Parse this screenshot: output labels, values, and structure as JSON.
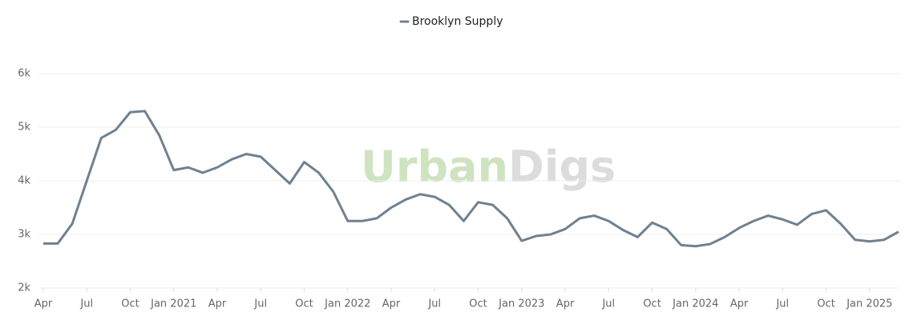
{
  "chart_data": {
    "type": "line",
    "watermark": {
      "first": "Urban",
      "second": "Digs"
    },
    "x": [
      "2020-04",
      "2020-05",
      "2020-06",
      "2020-07",
      "2020-08",
      "2020-09",
      "2020-10",
      "2020-11",
      "2020-12",
      "2021-01",
      "2021-02",
      "2021-03",
      "2021-04",
      "2021-05",
      "2021-06",
      "2021-07",
      "2021-08",
      "2021-09",
      "2021-10",
      "2021-11",
      "2021-12",
      "2022-01",
      "2022-02",
      "2022-03",
      "2022-04",
      "2022-05",
      "2022-06",
      "2022-07",
      "2022-08",
      "2022-09",
      "2022-10",
      "2022-11",
      "2022-12",
      "2023-01",
      "2023-02",
      "2023-03",
      "2023-04",
      "2023-05",
      "2023-06",
      "2023-07",
      "2023-08",
      "2023-09",
      "2023-10",
      "2023-11",
      "2023-12",
      "2024-01",
      "2024-02",
      "2024-03",
      "2024-04",
      "2024-05",
      "2024-06",
      "2024-07",
      "2024-08",
      "2024-09",
      "2024-10",
      "2024-11",
      "2024-12",
      "2025-01",
      "2025-02",
      "2025-03"
    ],
    "series": [
      {
        "name": "Brooklyn Supply",
        "color": "#6f8190",
        "values": [
          2830,
          2830,
          3200,
          4000,
          4800,
          4950,
          5280,
          5300,
          4850,
          4200,
          4250,
          4150,
          4250,
          4400,
          4500,
          4450,
          4200,
          3950,
          4350,
          4150,
          3800,
          3250,
          3250,
          3300,
          3500,
          3650,
          3750,
          3700,
          3550,
          3250,
          3600,
          3550,
          3300,
          2880,
          2970,
          3000,
          3100,
          3300,
          3350,
          3250,
          3080,
          2950,
          3220,
          3100,
          2800,
          2780,
          2820,
          2950,
          3120,
          3250,
          3350,
          3280,
          3180,
          3380,
          3450,
          3200,
          2900,
          2870,
          2900,
          3050
        ]
      }
    ],
    "xlim": [
      "2020-04",
      "2025-03"
    ],
    "xticks": [
      {
        "value": "2020-04",
        "label": "Apr"
      },
      {
        "value": "2020-07",
        "label": "Jul"
      },
      {
        "value": "2020-10",
        "label": "Oct"
      },
      {
        "value": "2021-01",
        "label": "Jan 2021"
      },
      {
        "value": "2021-04",
        "label": "Apr"
      },
      {
        "value": "2021-07",
        "label": "Jul"
      },
      {
        "value": "2021-10",
        "label": "Oct"
      },
      {
        "value": "2022-01",
        "label": "Jan 2022"
      },
      {
        "value": "2022-04",
        "label": "Apr"
      },
      {
        "value": "2022-07",
        "label": "Jul"
      },
      {
        "value": "2022-10",
        "label": "Oct"
      },
      {
        "value": "2023-01",
        "label": "Jan 2023"
      },
      {
        "value": "2023-04",
        "label": "Apr"
      },
      {
        "value": "2023-07",
        "label": "Jul"
      },
      {
        "value": "2023-10",
        "label": "Oct"
      },
      {
        "value": "2024-01",
        "label": "Jan 2024"
      },
      {
        "value": "2024-04",
        "label": "Apr"
      },
      {
        "value": "2024-07",
        "label": "Jul"
      },
      {
        "value": "2024-10",
        "label": "Oct"
      },
      {
        "value": "2025-01",
        "label": "Jan 2025"
      }
    ],
    "ylim": [
      2000,
      6000
    ],
    "yticks": [
      {
        "value": 2000,
        "label": "2k"
      },
      {
        "value": 3000,
        "label": "3k"
      },
      {
        "value": 4000,
        "label": "4k"
      },
      {
        "value": 5000,
        "label": "5k"
      },
      {
        "value": 6000,
        "label": "6k"
      }
    ],
    "grid": true,
    "legend": "top"
  }
}
